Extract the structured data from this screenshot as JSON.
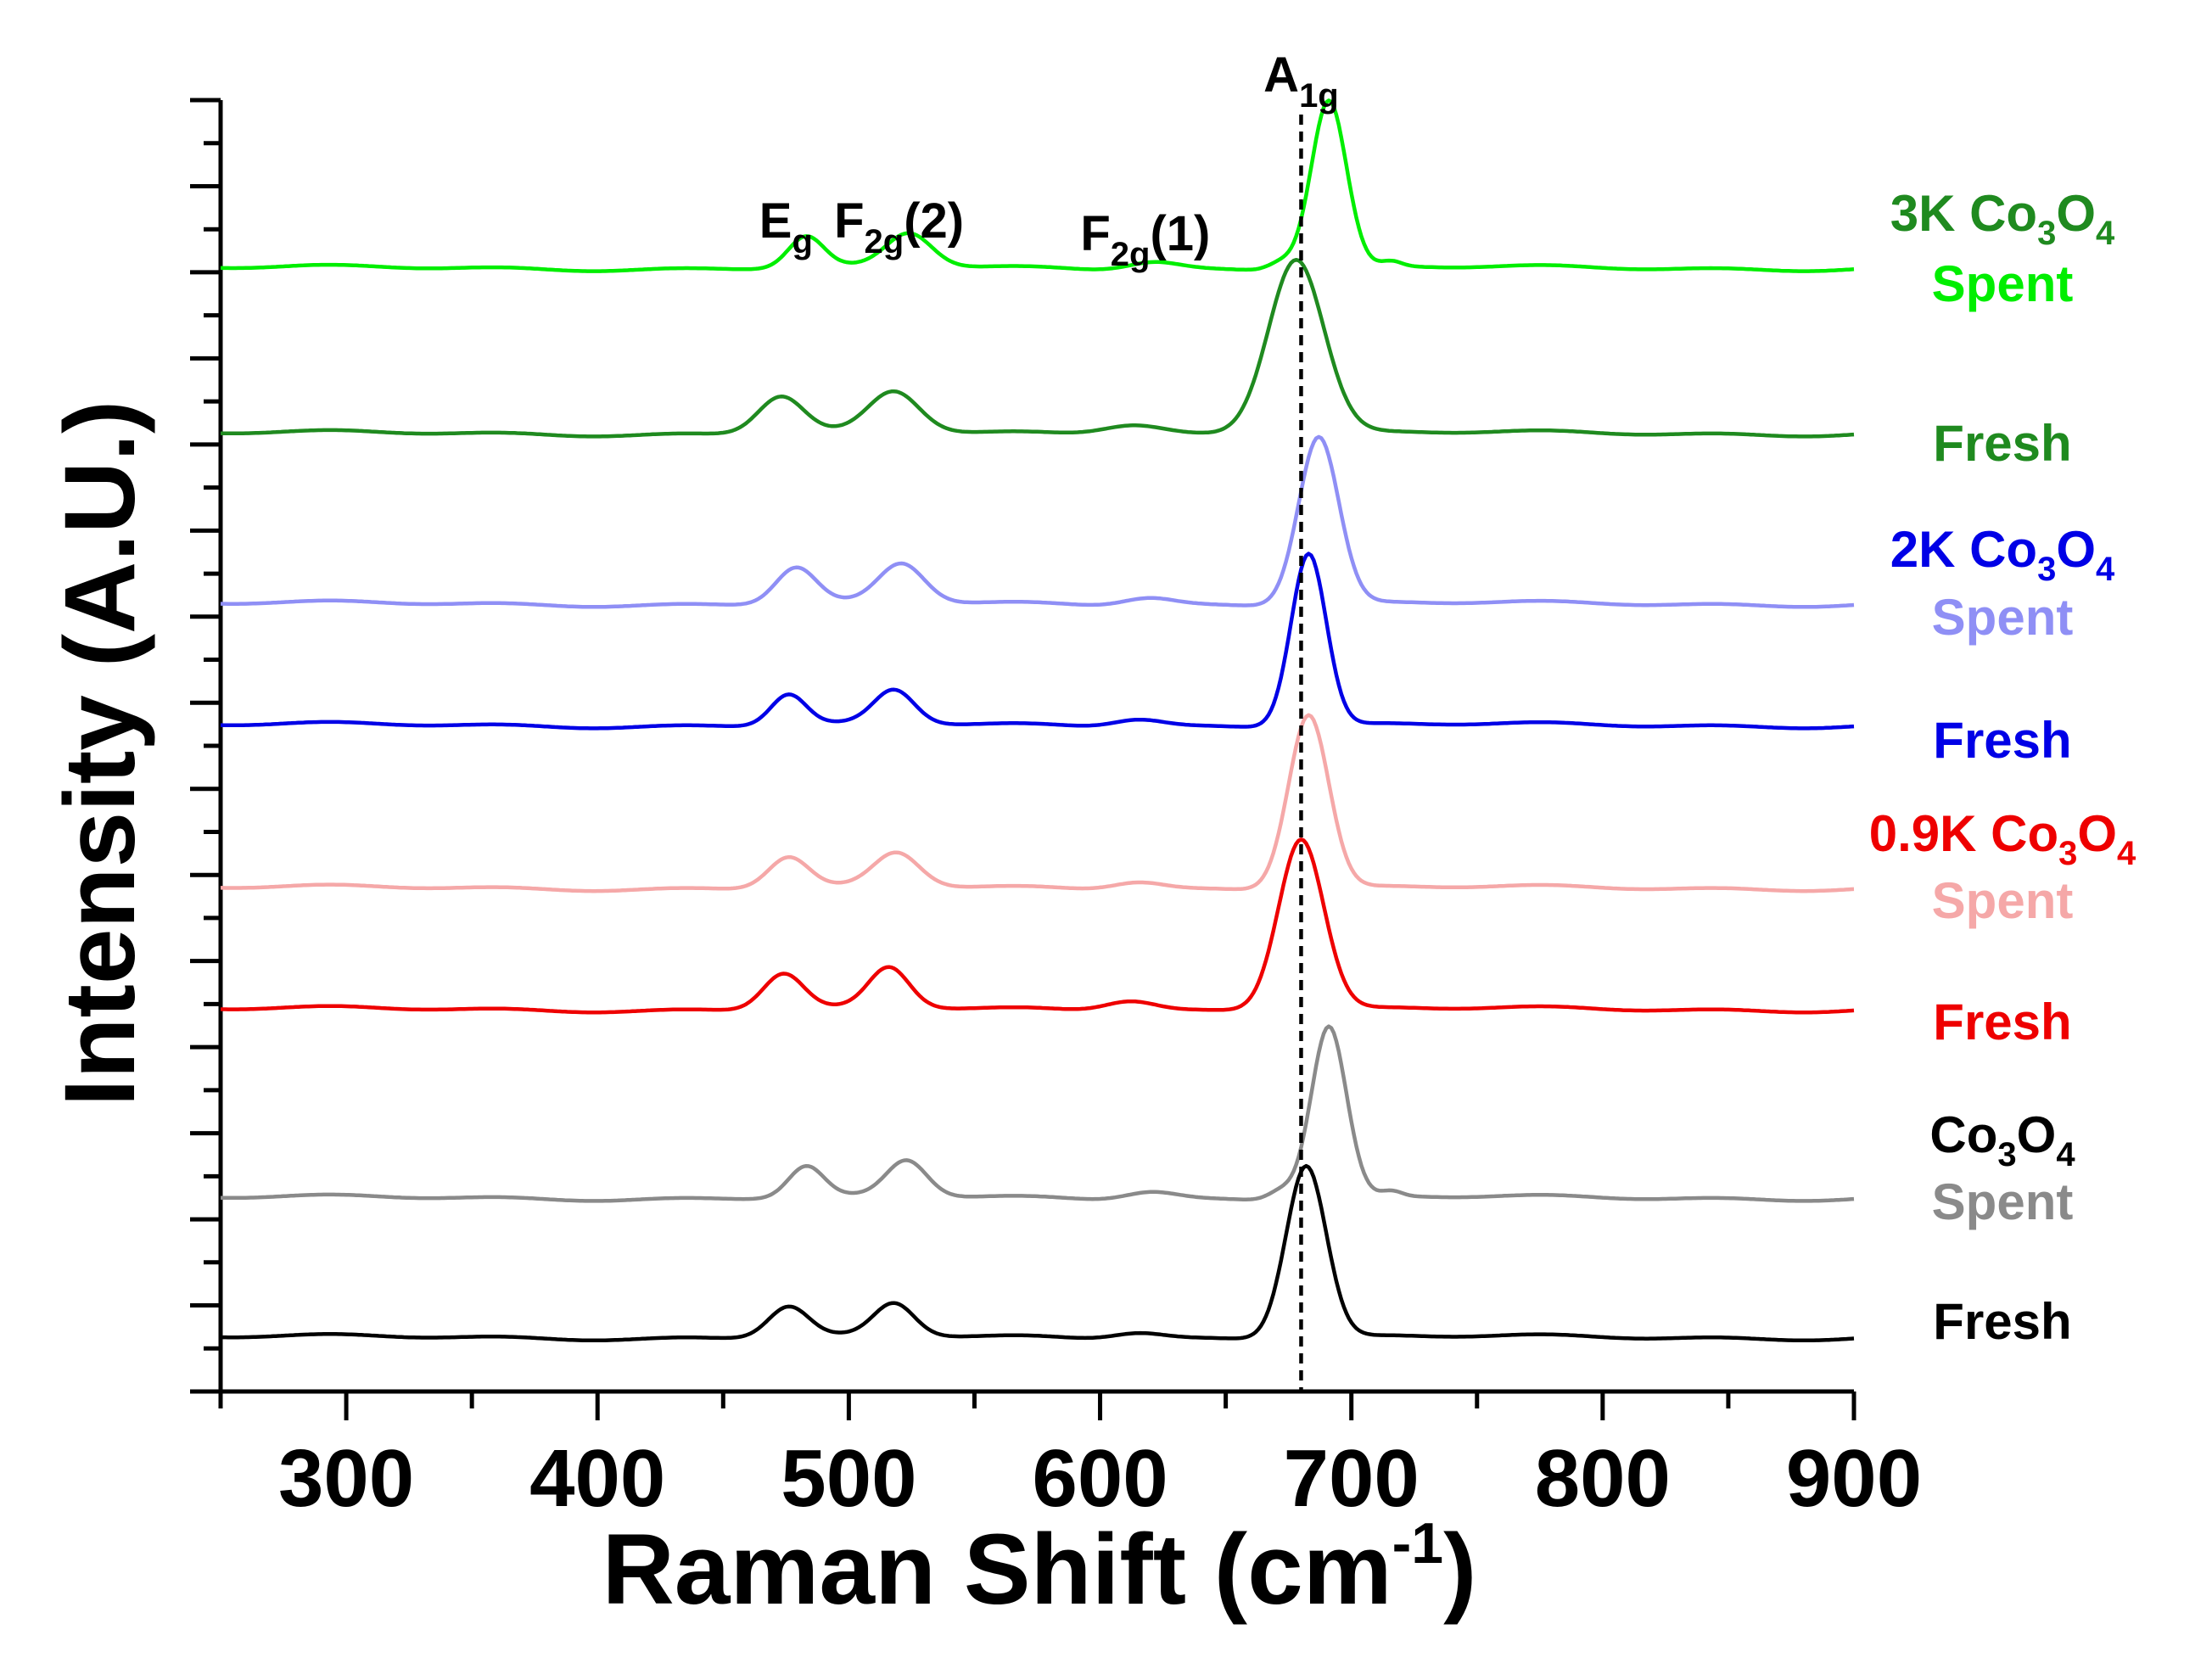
{
  "chart_data": {
    "type": "line",
    "title": "",
    "xlabel": "Raman Shift (cm",
    "xlabel_sup": "-1",
    "xlabel_close": ")",
    "ylabel": "Intensity (A.U.)",
    "xlim": [
      250,
      900
    ],
    "ylim": [
      0,
      100
    ],
    "xticks": [
      "300",
      "400",
      "500",
      "600",
      "700",
      "800",
      "900"
    ],
    "xtick_values": [
      300,
      400,
      500,
      600,
      700,
      800,
      900
    ],
    "reference_line": {
      "x": 680,
      "label_main": "A",
      "label_sub": "1g"
    },
    "peak_labels": [
      {
        "key": "eg",
        "main": "E",
        "sub": "g",
        "after": "",
        "x": 475
      },
      {
        "key": "f2g2",
        "main": "F",
        "sub": "2g",
        "after": "(2)",
        "x": 520
      },
      {
        "key": "f2g1",
        "main": "F",
        "sub": "2g",
        "after": "(1)",
        "x": 618
      },
      {
        "key": "a1g",
        "main": "A",
        "sub": "1g",
        "after": "",
        "x": 680
      }
    ],
    "series": [
      {
        "name": "3K Co3O4 Spent",
        "color": "#00ee00",
        "baseline": 87,
        "peaks": [
          [
            483,
            2.4,
            7
          ],
          [
            524,
            2.6,
            9
          ],
          [
            621,
            0.6,
            10
          ],
          [
            672,
            0.6,
            5
          ],
          [
            691,
            13.0,
            7
          ],
          [
            716,
            0.4,
            4
          ]
        ]
      },
      {
        "name": "3K Co3O4 Fresh",
        "color": "#1f8a1f",
        "baseline": 74.2,
        "peaks": [
          [
            473,
            2.9,
            9
          ],
          [
            518,
            3.1,
            10
          ],
          [
            613,
            0.8,
            12
          ],
          [
            678,
            13.6,
            11
          ]
        ]
      },
      {
        "name": "2K Co3O4 Spent",
        "color": "#8f8ff5",
        "baseline": 61.0,
        "peaks": [
          [
            479,
            2.8,
            8
          ],
          [
            521,
            3.0,
            9
          ],
          [
            619,
            0.6,
            10
          ],
          [
            687,
            13.0,
            8
          ]
        ]
      },
      {
        "name": "2K Co3O4 Fresh",
        "color": "#0000e6",
        "baseline": 51.6,
        "peaks": [
          [
            476,
            2.4,
            7
          ],
          [
            518,
            2.6,
            8
          ],
          [
            615,
            0.6,
            10
          ],
          [
            683,
            13.4,
            7
          ]
        ]
      },
      {
        "name": "0.9K Co3O4 Spent",
        "color": "#f5a8a8",
        "baseline": 39.0,
        "peaks": [
          [
            476,
            2.4,
            8
          ],
          [
            519,
            2.6,
            9
          ],
          [
            615,
            0.6,
            10
          ],
          [
            683,
            13.5,
            8
          ]
        ]
      },
      {
        "name": "0.9K Co3O4 Fresh",
        "color": "#ee0000",
        "baseline": 29.6,
        "peaks": [
          [
            474,
            2.8,
            8
          ],
          [
            516,
            3.1,
            8
          ],
          [
            612,
            0.8,
            10
          ],
          [
            680,
            13.3,
            9
          ]
        ]
      },
      {
        "name": "Co3O4 Spent",
        "color": "#8a8a8a",
        "baseline": 15.0,
        "peaks": [
          [
            483,
            2.4,
            7
          ],
          [
            523,
            2.8,
            8
          ],
          [
            620,
            0.6,
            10
          ],
          [
            672,
            0.7,
            5
          ],
          [
            691,
            13.3,
            7
          ],
          [
            716,
            0.4,
            4
          ]
        ]
      },
      {
        "name": "Co3O4 Fresh",
        "color": "#000000",
        "baseline": 4.2,
        "peaks": [
          [
            476,
            2.4,
            8
          ],
          [
            518,
            2.5,
            8
          ],
          [
            615,
            0.5,
            10
          ],
          [
            682,
            13.4,
            8
          ]
        ]
      }
    ],
    "legend": [
      {
        "key": "k3",
        "line1": "3K Co",
        "line1_sub1": "3",
        "line1_mid": "O",
        "line1_sub2": "4",
        "color1": "#1f8a1f",
        "line2": "Spent",
        "color2": "#00ee00"
      },
      {
        "key": "k3f",
        "line1": "",
        "line2": "Fresh",
        "color2": "#1f8a1f"
      },
      {
        "key": "k2",
        "line1": "2K Co",
        "line1_sub1": "3",
        "line1_mid": "O",
        "line1_sub2": "4",
        "color1": "#0000e6",
        "line2": "Spent",
        "color2": "#8f8ff5"
      },
      {
        "key": "k2f",
        "line1": "",
        "line2": "Fresh",
        "color2": "#0000e6"
      },
      {
        "key": "k09",
        "line1": "0.9K Co",
        "line1_sub1": "3",
        "line1_mid": "O",
        "line1_sub2": "4",
        "color1": "#ee0000",
        "line2": "Spent",
        "color2": "#f5a8a8"
      },
      {
        "key": "k09f",
        "line1": "",
        "line2": "Fresh",
        "color2": "#ee0000"
      },
      {
        "key": "k0",
        "line1": "Co",
        "line1_sub1": "3",
        "line1_mid": "O",
        "line1_sub2": "4",
        "color1": "#000000",
        "line2": "Spent",
        "color2": "#8a8a8a"
      },
      {
        "key": "k0f",
        "line1": "",
        "line2": "Fresh",
        "color2": "#000000"
      }
    ]
  }
}
